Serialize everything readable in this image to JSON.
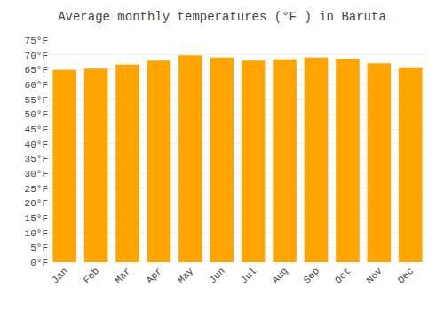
{
  "chart_data": {
    "type": "bar",
    "title": "Average monthly temperatures (°F ) in Baruta",
    "categories": [
      "Jan",
      "Feb",
      "Mar",
      "Apr",
      "May",
      "Jun",
      "Jul",
      "Aug",
      "Sep",
      "Oct",
      "Nov",
      "Dec"
    ],
    "values": [
      64.9,
      65.3,
      66.7,
      68.0,
      69.8,
      69.1,
      68.0,
      68.5,
      69.1,
      68.7,
      67.1,
      65.8
    ],
    "color": "#FFA500",
    "ylim": [
      0,
      75
    ],
    "yticks": [
      {
        "value": 0,
        "label": "0°F"
      },
      {
        "value": 5,
        "label": "5°F"
      },
      {
        "value": 10,
        "label": "10°F"
      },
      {
        "value": 15,
        "label": "15°F"
      },
      {
        "value": 20,
        "label": "20°F"
      },
      {
        "value": 25,
        "label": "25°F"
      },
      {
        "value": 30,
        "label": "30°F"
      },
      {
        "value": 35,
        "label": "35°F"
      },
      {
        "value": 40,
        "label": "40°F"
      },
      {
        "value": 45,
        "label": "45°F"
      },
      {
        "value": 50,
        "label": "50°F"
      },
      {
        "value": 55,
        "label": "55°F"
      },
      {
        "value": 60,
        "label": "60°F"
      },
      {
        "value": 65,
        "label": "65°F"
      },
      {
        "value": 70,
        "label": "70°F"
      },
      {
        "value": 75,
        "label": "75°F"
      }
    ],
    "grid": true
  }
}
